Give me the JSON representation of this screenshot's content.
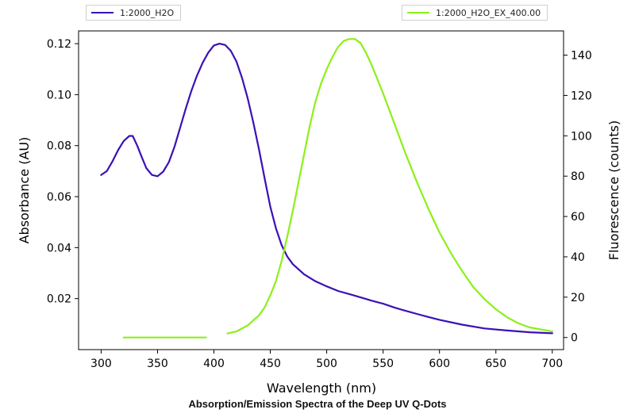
{
  "caption": "Absorption/Emission Spectra of the Deep UV Q-Dots",
  "chart_data": {
    "type": "line",
    "xlabel": "Wavelength (nm)",
    "ylabel_left": "Absorbance (AU)",
    "ylabel_right": "Fluorescence (counts)",
    "xlim": [
      280,
      710
    ],
    "ylim_left": [
      0.0,
      0.125
    ],
    "ylim_right": [
      -6,
      152
    ],
    "x_ticks": [
      300,
      350,
      400,
      450,
      500,
      550,
      600,
      650,
      700
    ],
    "y_left_ticks": [
      0.02,
      0.04,
      0.06,
      0.08,
      0.1,
      0.12
    ],
    "y_left_tick_labels": [
      "0.02",
      "0.04",
      "0.06",
      "0.08",
      "0.10",
      "0.12"
    ],
    "y_right_ticks": [
      0,
      20,
      40,
      60,
      80,
      100,
      120,
      140
    ],
    "grid": false,
    "series": [
      {
        "name": "1:2000_H2O",
        "axis": "left",
        "color": "#3b10b8",
        "x": [
          300,
          305,
          310,
          315,
          320,
          325,
          328,
          332,
          336,
          340,
          345,
          350,
          355,
          360,
          365,
          370,
          375,
          380,
          385,
          390,
          395,
          400,
          405,
          410,
          415,
          420,
          425,
          430,
          435,
          440,
          445,
          450,
          455,
          460,
          465,
          470,
          480,
          490,
          500,
          510,
          520,
          530,
          540,
          550,
          560,
          570,
          580,
          590,
          600,
          620,
          640,
          660,
          680,
          700
        ],
        "y": [
          0.0685,
          0.07,
          0.0738,
          0.0782,
          0.0818,
          0.0838,
          0.0838,
          0.08,
          0.0755,
          0.0712,
          0.0685,
          0.068,
          0.0698,
          0.0735,
          0.0795,
          0.087,
          0.0945,
          0.1015,
          0.1075,
          0.1125,
          0.1165,
          0.1193,
          0.12,
          0.1195,
          0.1172,
          0.113,
          0.1065,
          0.0985,
          0.089,
          0.0785,
          0.067,
          0.056,
          0.0475,
          0.041,
          0.0365,
          0.0335,
          0.0295,
          0.0268,
          0.0248,
          0.023,
          0.0218,
          0.0205,
          0.0192,
          0.018,
          0.0165,
          0.0152,
          0.014,
          0.0128,
          0.0117,
          0.0098,
          0.0083,
          0.0075,
          0.0068,
          0.0064
        ]
      },
      {
        "name": "1:2000_H2O_EX_400.00",
        "axis": "right",
        "color": "#8cf01a",
        "segments": [
          {
            "x": [
              320,
              340,
              360,
              380,
              393
            ],
            "y": [
              0,
              0,
              0,
              0,
              0
            ]
          },
          {
            "x": [
              412,
              420,
              430,
              440,
              445,
              450,
              455,
              460,
              465,
              470,
              475,
              480,
              485,
              490,
              495,
              500,
              505,
              510,
              515,
              520,
              525,
              530,
              535,
              540,
              550,
              560,
              570,
              580,
              590,
              600,
              610,
              620,
              630,
              640,
              650,
              660,
              670,
              680,
              690,
              700
            ],
            "y": [
              2,
              3,
              6,
              11,
              15,
              21,
              28,
              38,
              50,
              63,
              77,
              91,
              105,
              117,
              126,
              133,
              139,
              144,
              147,
              148,
              148,
              146,
              141,
              135,
              121,
              106,
              91,
              77,
              64,
              52,
              42,
              33,
              25,
              19,
              14,
              10,
              7,
              5,
              4,
              3
            ]
          }
        ]
      }
    ]
  }
}
